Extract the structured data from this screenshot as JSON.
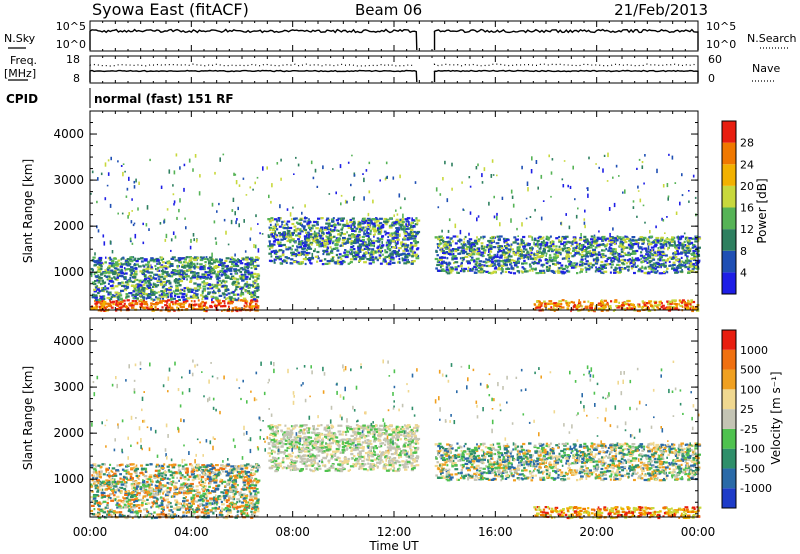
{
  "header": {
    "station": "Syowa East (fitACF)",
    "beam": "Beam 06",
    "date": "21/Feb/2013"
  },
  "noise_panel": {
    "left_label": "N.Sky",
    "right_label": "N.Search",
    "left_ticks": [
      "10^5",
      "10^0"
    ],
    "right_ticks": [
      "10^5",
      "10^0"
    ]
  },
  "freq_panel": {
    "left_label": "Freq.",
    "left_unit": "[MHz]",
    "right_label": "Nave",
    "left_ticks": [
      "18",
      "8"
    ],
    "right_ticks": [
      "60",
      "0"
    ]
  },
  "cpid_panel": {
    "label": "CPID",
    "mode": "normal (fast) 151 RF"
  },
  "x_axis": {
    "label": "Time UT",
    "ticks": [
      "00:00",
      "04:00",
      "08:00",
      "12:00",
      "16:00",
      "20:00",
      "00:00"
    ]
  },
  "chart_data": [
    {
      "type": "heatmap",
      "title": "",
      "variable": "Power",
      "xlabel": "Time UT",
      "ylabel": "Slant Range [km]",
      "xlim": [
        0,
        24
      ],
      "ylim": [
        180,
        4500
      ],
      "yticks": [
        1000,
        2000,
        3000,
        4000
      ],
      "colorbar": {
        "label": "Power [dB]",
        "ticks": [
          "4",
          "8",
          "12",
          "16",
          "20",
          "24",
          "28"
        ],
        "colors": [
          "#1e1ee6",
          "#1f4fb4",
          "#2e7f5f",
          "#56b356",
          "#c8d83c",
          "#f2b100",
          "#f07800",
          "#e81e10"
        ]
      },
      "data_gap_hours": [
        12.9,
        13.6
      ],
      "echo_regions": [
        {
          "t_start": 0.0,
          "t_end": 6.6,
          "r_min": 180,
          "r_max": 420,
          "dominant": "red-orange"
        },
        {
          "t_start": 0.0,
          "t_end": 6.6,
          "r_min": 420,
          "r_max": 1350,
          "dominant": "green-blue"
        },
        {
          "t_start": 7.0,
          "t_end": 12.9,
          "r_min": 1200,
          "r_max": 2200,
          "dominant": "blue-green"
        },
        {
          "t_start": 13.6,
          "t_end": 24.0,
          "r_min": 1000,
          "r_max": 1800,
          "dominant": "blue-green"
        },
        {
          "t_start": 17.5,
          "t_end": 24.0,
          "r_min": 180,
          "r_max": 420,
          "dominant": "orange"
        }
      ]
    },
    {
      "type": "heatmap",
      "title": "",
      "variable": "Velocity",
      "xlabel": "Time UT",
      "ylabel": "Slant Range [km]",
      "xlim": [
        0,
        24
      ],
      "ylim": [
        180,
        4500
      ],
      "yticks": [
        1000,
        2000,
        3000,
        4000
      ],
      "colorbar": {
        "label": "Velocity [m s⁻¹]",
        "ticks": [
          "1000",
          "500",
          "100",
          "25",
          "-25",
          "-100",
          "-500",
          "-1000"
        ],
        "colors": [
          "#1e3cc8",
          "#2a6aa8",
          "#2f8f6a",
          "#4fc24f",
          "#c4c4b4",
          "#f0d890",
          "#f0a020",
          "#f07010",
          "#e81e10"
        ]
      },
      "data_gap_hours": [
        12.9,
        13.6
      ],
      "echo_regions": [
        {
          "t_start": 0.0,
          "t_end": 6.6,
          "r_min": 180,
          "r_max": 1350,
          "dominant": "orange-green"
        },
        {
          "t_start": 7.0,
          "t_end": 12.9,
          "r_min": 1200,
          "r_max": 2200,
          "dominant": "grey"
        },
        {
          "t_start": 13.6,
          "t_end": 24.0,
          "r_min": 1000,
          "r_max": 1800,
          "dominant": "grey-green"
        },
        {
          "t_start": 17.5,
          "t_end": 24.0,
          "r_min": 180,
          "r_max": 420,
          "dominant": "orange"
        }
      ]
    }
  ],
  "colors": {
    "axis": "#000000",
    "background": "#ffffff"
  }
}
